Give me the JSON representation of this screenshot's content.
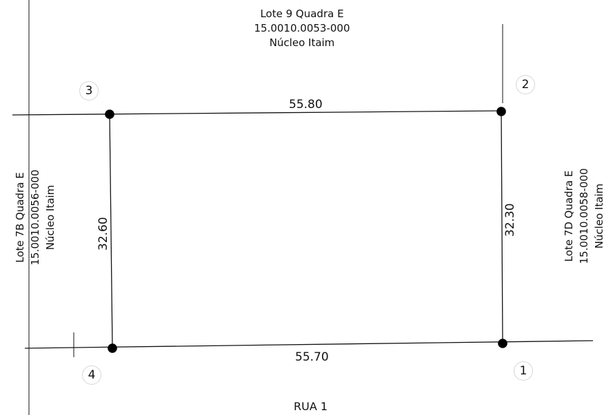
{
  "colors": {
    "line": "#111111",
    "point": "#000000",
    "circle": "#d0d0d0"
  },
  "labels": {
    "north": {
      "line1": "Lote 9  Quadra E",
      "line2": "15.0010.0053-000",
      "line3": "Núcleo Itaim"
    },
    "west": {
      "line1": "Lote 7B  Quadra E",
      "line2": "15.0010.0056-000",
      "line3": "Núcleo Itaim"
    },
    "east": {
      "line1": "Lote 7D  Quadra E",
      "line2": "15.0010.0058-000",
      "line3": "Núcleo Itaim"
    },
    "street": "RUA 1"
  },
  "dimensions": {
    "top": "55.80",
    "bottom": "55.70",
    "left": "32.60",
    "right": "32.30"
  },
  "corners": {
    "c1": "1",
    "c2": "2",
    "c3": "3",
    "c4": "4"
  }
}
